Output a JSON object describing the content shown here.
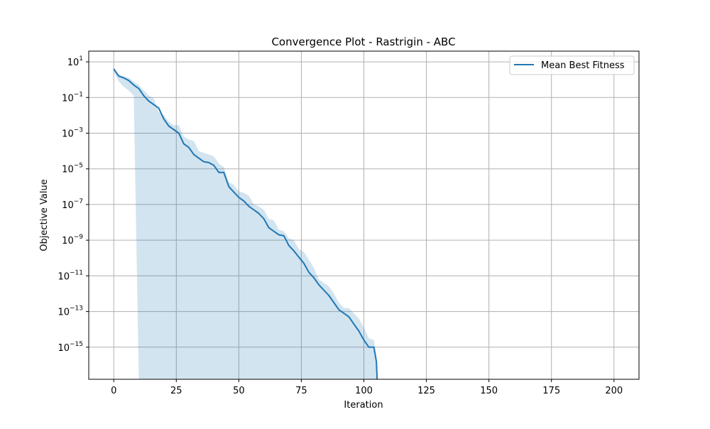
{
  "chart_data": {
    "type": "line",
    "title": "Convergence Plot - Rastrigin - ABC",
    "xlabel": "Iteration",
    "ylabel": "Objective Value",
    "xlim": [
      -10,
      210
    ],
    "ylim_log10": [
      -16.8,
      1.6
    ],
    "yscale": "log",
    "grid": true,
    "legend_position": "top-right",
    "x_ticks": [
      0,
      25,
      50,
      75,
      100,
      125,
      150,
      175,
      200
    ],
    "y_ticks": [
      {
        "base": "10",
        "exp": "1",
        "log": 1
      },
      {
        "base": "10",
        "exp": "−1",
        "log": -1
      },
      {
        "base": "10",
        "exp": "−3",
        "log": -3
      },
      {
        "base": "10",
        "exp": "−5",
        "log": -5
      },
      {
        "base": "10",
        "exp": "−7",
        "log": -7
      },
      {
        "base": "10",
        "exp": "−9",
        "log": -9
      },
      {
        "base": "10",
        "exp": "−11",
        "log": -11
      },
      {
        "base": "10",
        "exp": "−13",
        "log": -13
      },
      {
        "base": "10",
        "exp": "−15",
        "log": -15
      }
    ],
    "colors": {
      "line": "#1f77b4",
      "band": "#1f77b4",
      "grid": "#b0b0b0"
    },
    "series": [
      {
        "name": "Mean Best Fitness",
        "x": [
          0,
          2,
          4,
          6,
          8,
          10,
          12,
          14,
          16,
          18,
          20,
          22,
          24,
          26,
          28,
          30,
          32,
          34,
          36,
          38,
          40,
          42,
          44,
          46,
          48,
          50,
          52,
          54,
          56,
          58,
          60,
          62,
          64,
          66,
          68,
          70,
          72,
          74,
          76,
          78,
          80,
          82,
          84,
          86,
          88,
          90,
          92,
          94,
          96,
          98,
          100,
          102,
          104,
          105,
          105.3
        ],
        "log10_y": [
          0.6,
          0.2,
          0.1,
          -0.05,
          -0.3,
          -0.5,
          -0.9,
          -1.2,
          -1.4,
          -1.6,
          -2.2,
          -2.6,
          -2.8,
          -3.0,
          -3.6,
          -3.8,
          -4.2,
          -4.4,
          -4.6,
          -4.65,
          -4.8,
          -5.2,
          -5.2,
          -6.0,
          -6.3,
          -6.6,
          -6.8,
          -7.1,
          -7.3,
          -7.5,
          -7.8,
          -8.3,
          -8.5,
          -8.7,
          -8.75,
          -9.3,
          -9.6,
          -9.95,
          -10.3,
          -10.8,
          -11.1,
          -11.5,
          -11.8,
          -12.1,
          -12.5,
          -12.9,
          -13.1,
          -13.3,
          -13.7,
          -14.1,
          -14.6,
          -15.0,
          -15.0,
          -15.8,
          -16.8
        ]
      }
    ],
    "band": {
      "x": [
        0,
        2,
        4,
        6,
        8,
        10,
        12,
        14,
        16,
        18,
        20,
        22,
        24,
        26,
        28,
        30,
        32,
        34,
        36,
        38,
        40,
        42,
        44,
        46,
        48,
        50,
        52,
        54,
        56,
        58,
        60,
        62,
        64,
        66,
        68,
        70,
        72,
        74,
        76,
        78,
        80,
        82,
        84,
        86,
        88,
        90,
        92,
        94,
        96,
        98,
        100,
        102,
        104,
        105,
        105.3
      ],
      "upper_log10": [
        0.6,
        0.3,
        0.2,
        0.1,
        -0.1,
        -0.3,
        -0.6,
        -0.9,
        -1.05,
        -1.8,
        -2.0,
        -2.35,
        -2.55,
        -2.55,
        -3.2,
        -3.35,
        -3.45,
        -4.0,
        -4.1,
        -4.2,
        -4.3,
        -4.7,
        -4.9,
        -5.75,
        -5.9,
        -6.25,
        -6.35,
        -6.5,
        -7.0,
        -7.1,
        -7.3,
        -7.8,
        -7.9,
        -8.4,
        -8.5,
        -8.9,
        -9.0,
        -9.5,
        -9.65,
        -10.1,
        -10.55,
        -11.2,
        -11.4,
        -11.6,
        -12.0,
        -12.5,
        -12.8,
        -12.8,
        -13.1,
        -13.4,
        -13.9,
        -14.5,
        -14.6,
        -15.5,
        -16.8
      ],
      "lower_log10": [
        0.45,
        -0.1,
        -0.4,
        -0.6,
        -0.9,
        -16.8,
        -16.8,
        -16.8,
        -16.8,
        -16.8,
        -16.8,
        -16.8,
        -16.8,
        -16.8,
        -16.8,
        -16.8,
        -16.8,
        -16.8,
        -16.8,
        -16.8,
        -16.8,
        -16.8,
        -16.8,
        -16.8,
        -16.8,
        -16.8,
        -16.8,
        -16.8,
        -16.8,
        -16.8,
        -16.8,
        -16.8,
        -16.8,
        -16.8,
        -16.8,
        -16.8,
        -16.8,
        -16.8,
        -16.8,
        -16.8,
        -16.8,
        -16.8,
        -16.8,
        -16.8,
        -16.8,
        -16.8,
        -16.8,
        -16.8,
        -16.8,
        -16.8,
        -16.8,
        -16.8,
        -16.8,
        -16.8,
        -16.8
      ]
    }
  }
}
